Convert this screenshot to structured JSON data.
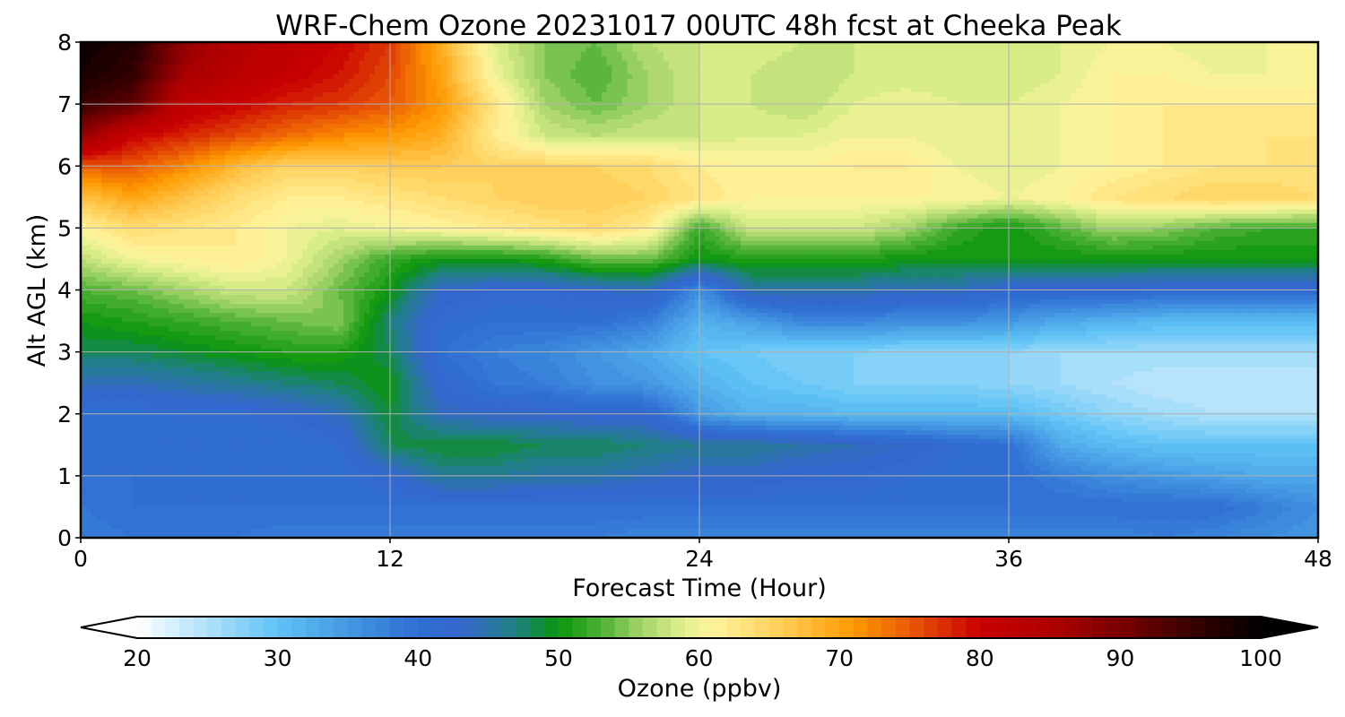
{
  "chart_data": {
    "type": "heatmap",
    "title": "WRF-Chem Ozone  20231017 00UTC 48h fcst at Cheeka Peak",
    "xlabel": "Forecast Time (Hour)",
    "ylabel": "Alt AGL (km)",
    "xlim": [
      0,
      48
    ],
    "ylim": [
      0,
      8
    ],
    "x_ticks": [
      "0",
      "12",
      "24",
      "36",
      "48"
    ],
    "y_ticks": [
      "0",
      "1",
      "2",
      "3",
      "4",
      "5",
      "6",
      "7",
      "8"
    ],
    "grid": true,
    "x": [
      0,
      2,
      4,
      6,
      8,
      10,
      12,
      14,
      16,
      18,
      20,
      22,
      24,
      26,
      28,
      30,
      32,
      34,
      36,
      38,
      40,
      42,
      44,
      46,
      48
    ],
    "y": [
      0,
      0.5,
      1,
      1.5,
      2,
      2.5,
      3,
      3.5,
      4,
      4.5,
      5,
      5.5,
      6,
      6.5,
      7,
      7.5,
      8
    ],
    "z": [
      [
        38,
        39,
        39,
        39,
        38,
        38,
        38,
        38,
        38,
        38,
        38,
        37,
        37,
        37,
        37,
        37,
        37,
        37,
        37,
        37,
        37,
        38,
        37,
        36,
        35
      ],
      [
        39,
        40,
        40,
        40,
        40,
        40,
        40,
        40,
        40,
        40,
        40,
        40,
        40,
        40,
        40,
        40,
        40,
        40,
        40,
        40,
        40,
        40,
        40,
        38,
        36
      ],
      [
        40,
        40,
        40,
        40,
        40,
        40,
        42,
        46,
        46,
        45,
        45,
        44,
        43,
        43,
        42,
        42,
        41,
        40,
        40,
        38,
        36,
        35,
        34,
        33,
        33
      ],
      [
        40,
        40,
        40,
        40,
        40,
        41,
        48,
        49,
        49,
        48,
        48,
        47,
        46,
        46,
        45,
        44,
        43,
        41,
        40,
        33,
        31,
        30,
        30,
        30,
        30
      ],
      [
        40,
        40,
        41,
        41,
        42,
        44,
        49,
        44,
        43,
        43,
        42,
        42,
        35,
        32,
        32,
        31,
        31,
        31,
        31,
        29,
        27,
        26,
        25,
        25,
        25
      ],
      [
        44,
        44,
        45,
        46,
        47,
        48,
        50,
        42,
        39,
        38,
        36,
        35,
        32,
        30,
        29,
        28,
        28,
        28,
        27,
        26,
        25,
        24,
        24,
        24,
        24
      ],
      [
        48,
        48,
        49,
        50,
        51,
        51,
        48,
        40,
        38,
        37,
        35,
        33,
        30,
        29,
        28,
        28,
        27,
        27,
        27,
        26,
        26,
        26,
        26,
        26,
        26
      ],
      [
        50,
        51,
        52,
        53,
        54,
        55,
        47,
        41,
        40,
        40,
        40,
        38,
        32,
        34,
        37,
        37,
        36,
        36,
        35,
        33,
        32,
        31,
        31,
        31,
        31
      ],
      [
        53,
        54,
        56,
        58,
        58,
        54,
        50,
        43,
        42,
        42,
        43,
        44,
        36,
        45,
        45,
        45,
        44,
        44,
        42,
        42,
        42,
        41,
        41,
        41,
        41
      ],
      [
        57,
        60,
        61,
        62,
        60,
        56,
        52,
        50,
        50,
        51,
        54,
        54,
        50,
        51,
        51,
        51,
        50,
        50,
        50,
        50,
        50,
        50,
        50,
        50,
        50
      ],
      [
        61,
        64,
        63,
        62,
        60,
        59,
        60,
        61,
        62,
        63,
        64,
        62,
        52,
        58,
        58,
        58,
        56,
        52,
        50,
        53,
        56,
        55,
        53,
        52,
        52
      ],
      [
        67,
        70,
        67,
        64,
        62,
        62,
        63,
        64,
        65,
        66,
        66,
        65,
        63,
        61,
        61,
        61,
        61,
        61,
        60,
        61,
        63,
        64,
        65,
        65,
        64
      ],
      [
        75,
        75,
        72,
        68,
        65,
        65,
        66,
        66,
        65,
        65,
        65,
        64,
        62,
        61,
        61,
        62,
        62,
        60,
        59,
        60,
        61,
        62,
        63,
        63,
        63
      ],
      [
        88,
        80,
        78,
        76,
        74,
        72,
        71,
        69,
        62,
        58,
        57,
        58,
        58,
        59,
        59,
        60,
        60,
        59,
        59,
        60,
        61,
        62,
        62,
        63,
        63
      ],
      [
        95,
        92,
        82,
        80,
        78,
        77,
        75,
        71,
        63,
        56,
        54,
        56,
        58,
        58,
        57,
        59,
        60,
        59,
        59,
        60,
        61,
        62,
        62,
        62,
        62
      ],
      [
        98,
        96,
        86,
        83,
        81,
        79,
        76,
        70,
        60,
        55,
        53,
        56,
        58,
        58,
        57,
        58,
        58,
        58,
        58,
        59,
        61,
        61,
        60,
        60,
        60
      ],
      [
        99,
        97,
        88,
        84,
        82,
        80,
        77,
        69,
        59,
        55,
        54,
        57,
        58,
        59,
        58,
        58,
        58,
        58,
        58,
        59,
        60,
        60,
        59,
        60,
        60
      ]
    ],
    "colorbar": {
      "label": "Ozone  (ppbv)",
      "min": 20,
      "max": 100,
      "step": 1,
      "extend": "both",
      "ticks": [
        "20",
        "30",
        "40",
        "50",
        "60",
        "70",
        "80",
        "90",
        "100"
      ],
      "color_stops": [
        {
          "v": 20,
          "c": "#ffffff"
        },
        {
          "v": 30,
          "c": "#5fc3f5"
        },
        {
          "v": 36,
          "c": "#3f8fde"
        },
        {
          "v": 40,
          "c": "#2f6ed3"
        },
        {
          "v": 43,
          "c": "#3466cc"
        },
        {
          "v": 47,
          "c": "#1e8080"
        },
        {
          "v": 50,
          "c": "#0a960a"
        },
        {
          "v": 53,
          "c": "#4cb035"
        },
        {
          "v": 56,
          "c": "#a6d66a"
        },
        {
          "v": 59,
          "c": "#e2f08e"
        },
        {
          "v": 61,
          "c": "#fff39c"
        },
        {
          "v": 66,
          "c": "#ffcc55"
        },
        {
          "v": 71,
          "c": "#ff9a00"
        },
        {
          "v": 75,
          "c": "#ea5a05"
        },
        {
          "v": 80,
          "c": "#c80000"
        },
        {
          "v": 85,
          "c": "#b00000"
        },
        {
          "v": 90,
          "c": "#7a0000"
        },
        {
          "v": 95,
          "c": "#3a0000"
        },
        {
          "v": 100,
          "c": "#000000"
        }
      ],
      "under_color": "#ffffff",
      "over_color": "#000000"
    }
  }
}
